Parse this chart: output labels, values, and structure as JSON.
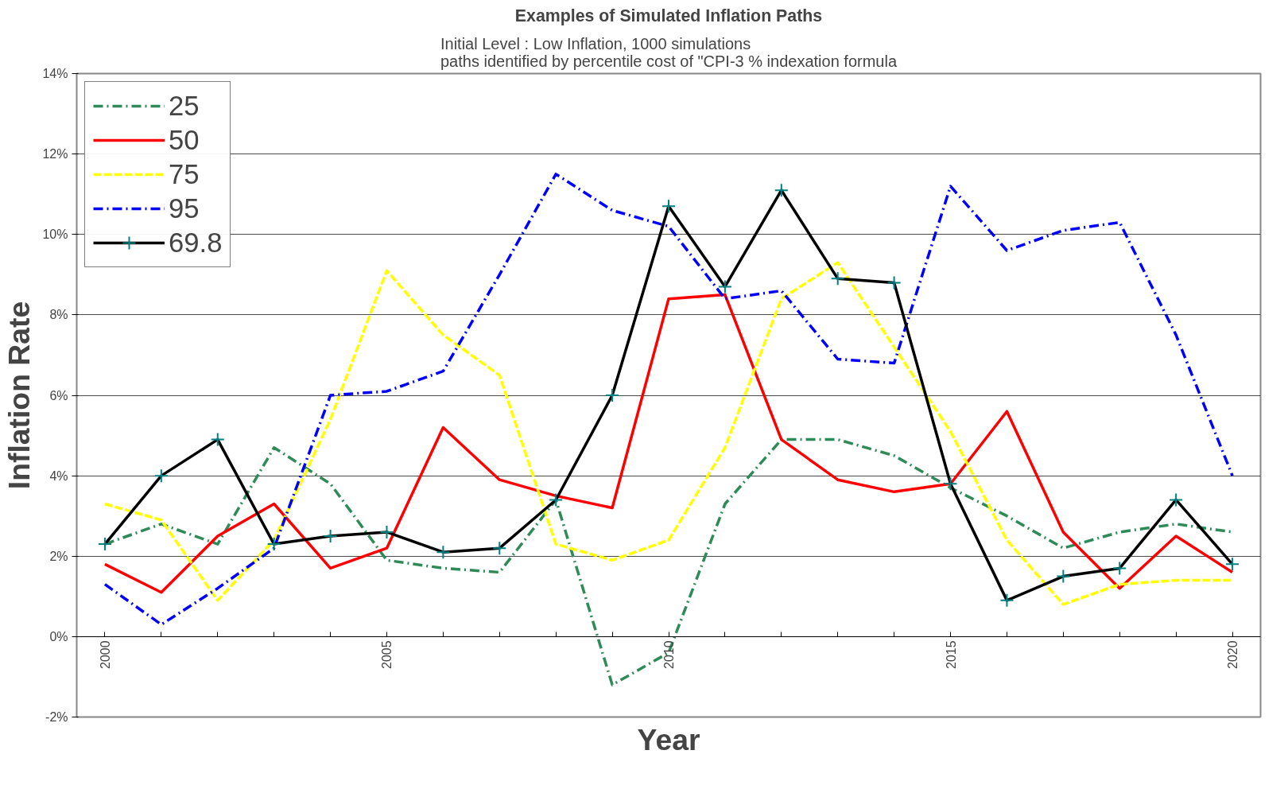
{
  "chart_data": {
    "type": "line",
    "title": "Examples of Simulated Inflation Paths",
    "subtitle": "Initial Level : Low Inflation, 1000 simulations\npaths identified by percentile cost of \"CPI-3 % indexation formula",
    "xlabel": "Year",
    "ylabel": "Inflation Rate",
    "x": [
      2000,
      2001,
      2002,
      2003,
      2004,
      2005,
      2006,
      2007,
      2008,
      2009,
      2010,
      2011,
      2012,
      2013,
      2014,
      2015,
      2016,
      2017,
      2018,
      2019,
      2020
    ],
    "xlim": [
      1999.5,
      2020.5
    ],
    "xticks": [
      2000,
      {
        "value": 2001,
        "label": null
      },
      {
        "value": 2002,
        "label": null
      },
      {
        "value": 2003,
        "label": null
      },
      {
        "value": 2004,
        "label": null
      },
      2005,
      {
        "value": 2006,
        "label": null
      },
      {
        "value": 2007,
        "label": null
      },
      {
        "value": 2008,
        "label": null
      },
      {
        "value": 2009,
        "label": null
      },
      2010,
      {
        "value": 2011,
        "label": null
      },
      {
        "value": 2012,
        "label": null
      },
      {
        "value": 2013,
        "label": null
      },
      {
        "value": 2014,
        "label": null
      },
      2015,
      {
        "value": 2016,
        "label": null
      },
      {
        "value": 2017,
        "label": null
      },
      {
        "value": 2018,
        "label": null
      },
      {
        "value": 2019,
        "label": null
      },
      2020
    ],
    "ylim": [
      -2,
      14
    ],
    "yticks": [
      {
        "value": -2,
        "label": "-2%"
      },
      {
        "value": 0,
        "label": "0%"
      },
      {
        "value": 2,
        "label": "2%"
      },
      {
        "value": 4,
        "label": "4%"
      },
      {
        "value": 6,
        "label": "6%"
      },
      {
        "value": 8,
        "label": "8%"
      },
      {
        "value": 10,
        "label": "10%"
      },
      {
        "value": 12,
        "label": "12%"
      },
      {
        "value": 14,
        "label": "14%"
      }
    ],
    "grid": "y",
    "legend": "top left",
    "marker": "none",
    "series": [
      {
        "name": "25",
        "color": "#2e8b57",
        "line_style": "dashdot",
        "values": [
          2.3,
          2.8,
          2.3,
          4.7,
          3.8,
          1.9,
          1.7,
          1.6,
          3.4,
          -1.2,
          -0.4,
          3.3,
          4.9,
          4.9,
          4.5,
          3.7,
          3.0,
          2.2,
          2.6,
          2.8,
          2.6
        ]
      },
      {
        "name": "50",
        "color": "#ff0000",
        "line_style": "solid",
        "values": [
          1.8,
          1.1,
          2.5,
          3.3,
          1.7,
          2.2,
          5.2,
          3.9,
          3.5,
          3.2,
          8.4,
          8.5,
          4.9,
          3.9,
          3.6,
          3.8,
          5.6,
          2.6,
          1.2,
          2.5,
          1.6
        ]
      },
      {
        "name": "75",
        "color": "#ffff00",
        "line_style": "dashed",
        "values": [
          3.3,
          2.9,
          0.9,
          2.4,
          5.4,
          9.1,
          7.5,
          6.5,
          2.3,
          1.9,
          2.4,
          4.7,
          8.4,
          9.3,
          7.2,
          5.1,
          2.4,
          0.8,
          1.3,
          1.4,
          1.4
        ]
      },
      {
        "name": "95",
        "color": "#0000ff",
        "line_style": "dashdot",
        "values": [
          1.3,
          0.3,
          1.2,
          2.2,
          6.0,
          6.1,
          6.6,
          9.0,
          11.5,
          10.6,
          10.2,
          8.4,
          8.6,
          6.9,
          6.8,
          11.2,
          9.6,
          10.1,
          10.3,
          7.5,
          4.0
        ]
      },
      {
        "name": "69.8",
        "color": "#000000",
        "line_style": "solid",
        "marker": "cross",
        "values": [
          2.3,
          4.0,
          4.9,
          2.3,
          2.5,
          2.6,
          2.1,
          2.2,
          3.4,
          6.0,
          10.7,
          8.7,
          11.1,
          8.9,
          8.8,
          3.8,
          0.9,
          1.5,
          1.7,
          3.4,
          1.8
        ]
      }
    ]
  }
}
